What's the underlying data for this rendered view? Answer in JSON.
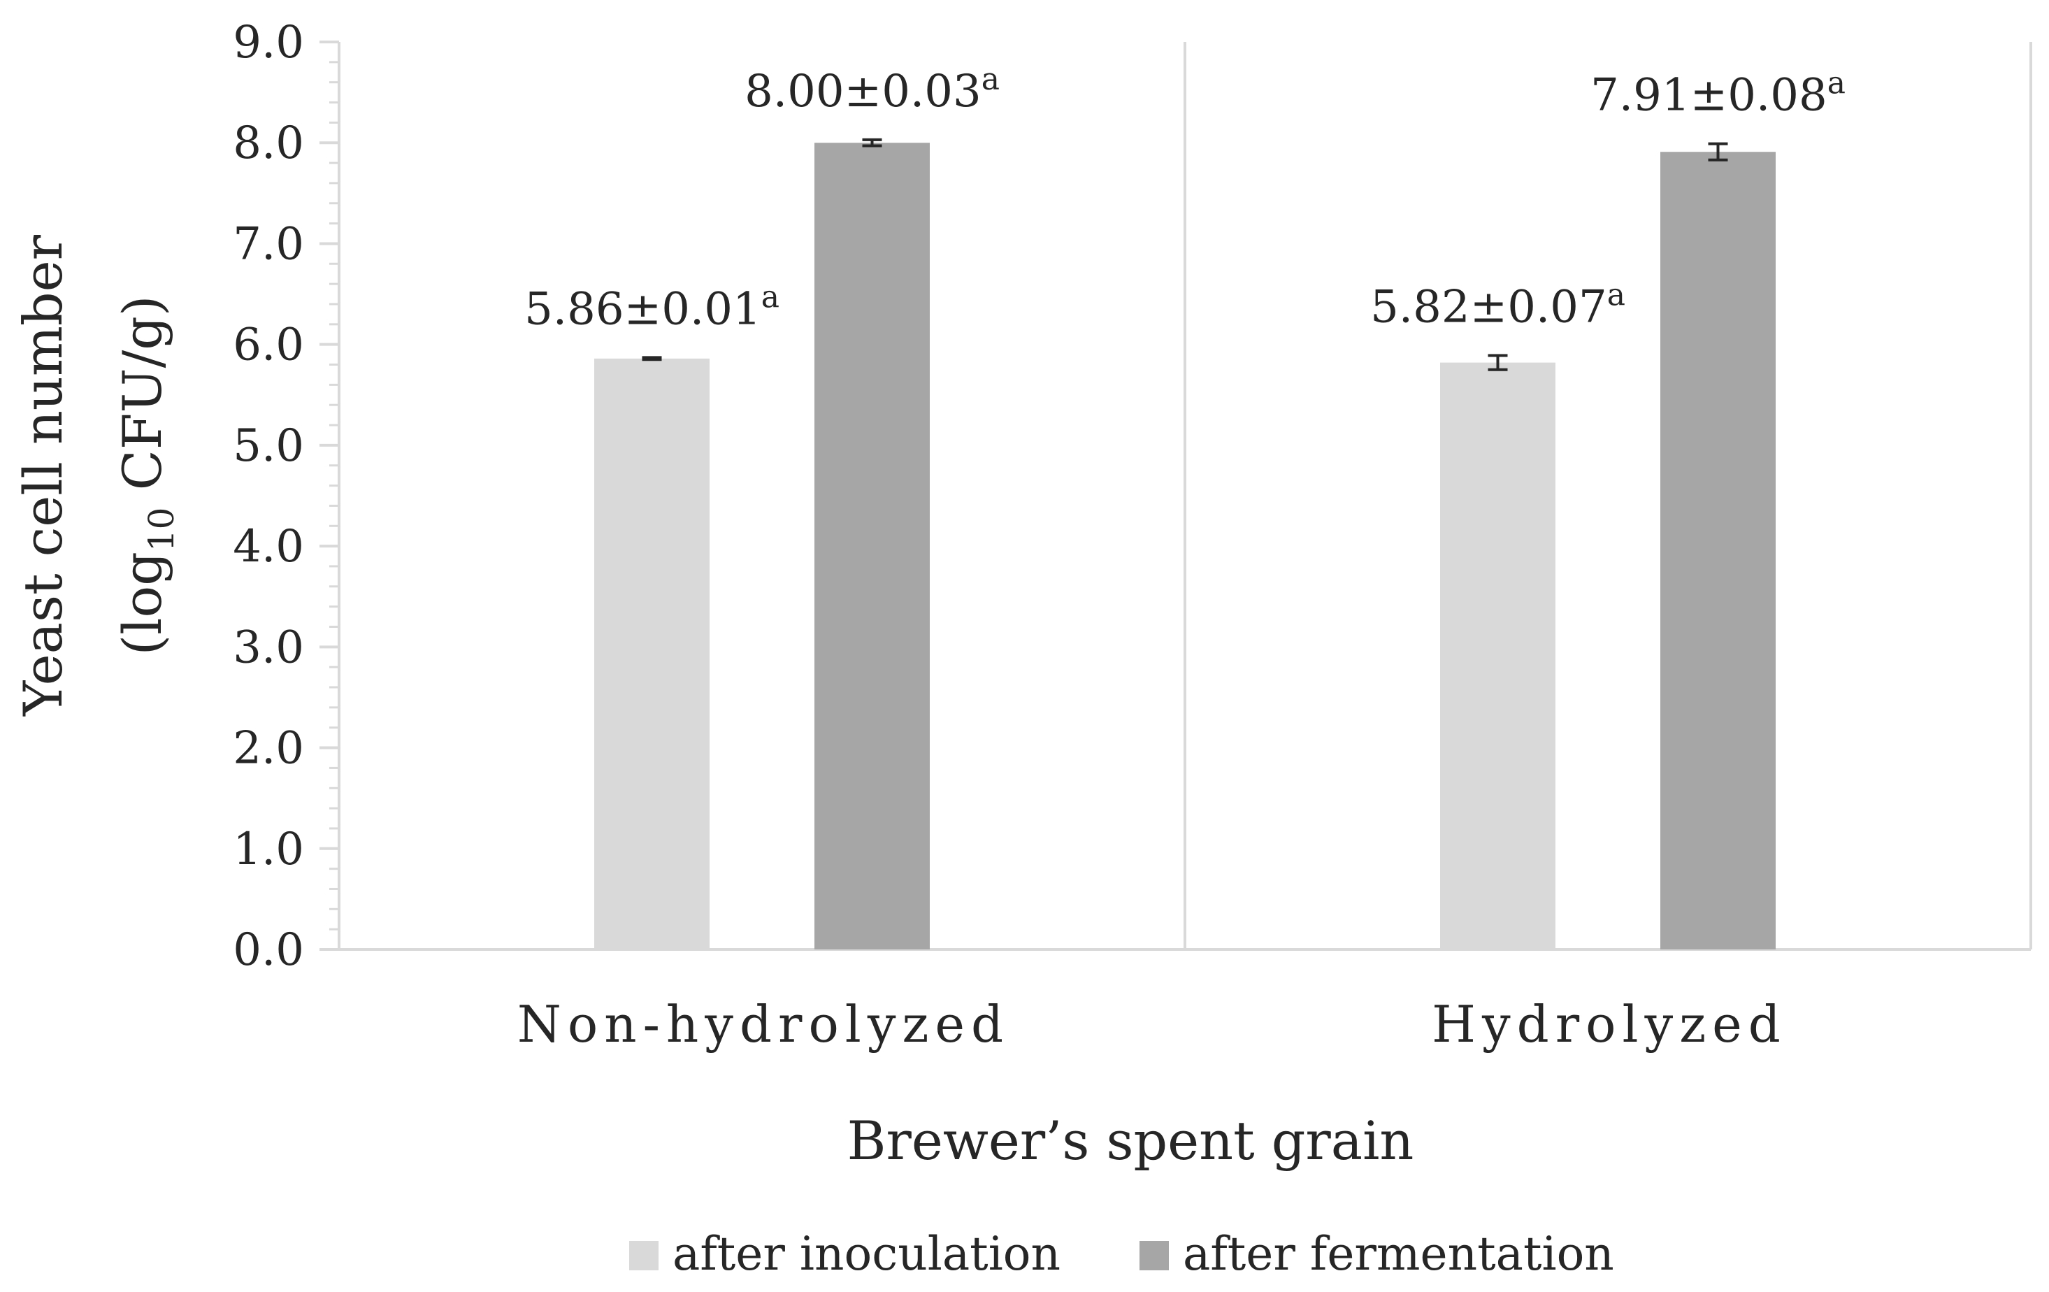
{
  "chart_data": {
    "type": "bar",
    "categories": [
      "Non-hydrolyzed",
      "Hydrolyzed"
    ],
    "series": [
      {
        "name": "after inoculation",
        "color": "#d9d9d9",
        "values": [
          5.86,
          5.82
        ],
        "errors": [
          0.01,
          0.07
        ],
        "labels": [
          "5.86±0.01",
          "5.82±0.07"
        ],
        "superscripts": [
          "a",
          "a"
        ]
      },
      {
        "name": "after fermentation",
        "color": "#a6a6a6",
        "values": [
          8.0,
          7.91
        ],
        "errors": [
          0.03,
          0.08
        ],
        "labels": [
          "8.00±0.03",
          "7.91±0.08"
        ],
        "superscripts": [
          "a",
          "a"
        ]
      }
    ],
    "xlabel": "Brewer’s spent grain",
    "ylabel": {
      "line1": "Yeast cell number",
      "line2_prefix": "(log",
      "line2_sub": "10",
      "line2_suffix": " CFU/g)"
    },
    "ylim": [
      0,
      9
    ],
    "yticks": [
      "0.0",
      "1.0",
      "2.0",
      "3.0",
      "4.0",
      "5.0",
      "6.0",
      "7.0",
      "8.0",
      "9.0"
    ],
    "grid": false,
    "legend_position": "bottom"
  }
}
